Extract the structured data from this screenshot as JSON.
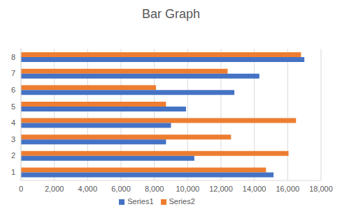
{
  "chart_data": {
    "type": "bar",
    "title": "Bar Graph",
    "orientation": "horizontal",
    "categories": [
      "1",
      "2",
      "3",
      "4",
      "5",
      "6",
      "7",
      "8"
    ],
    "series": [
      {
        "name": "Series1",
        "color": "#4472c4",
        "values": [
          15150,
          10400,
          8700,
          9000,
          9900,
          12800,
          14300,
          17000
        ]
      },
      {
        "name": "Series2",
        "color": "#ed7d31",
        "values": [
          14700,
          16050,
          12600,
          16500,
          8700,
          8100,
          12400,
          16800
        ]
      }
    ],
    "xlim": [
      0,
      18000
    ],
    "xticks": [
      0,
      {
        "value": 2000,
        "label": "2,000"
      },
      {
        "value": 4000,
        "label": "4,000"
      },
      {
        "value": 6000,
        "label": "6,000"
      },
      {
        "value": 8000,
        "label": "8,000"
      },
      {
        "value": 10000,
        "label": "10,000"
      },
      {
        "value": 12000,
        "label": "12,000"
      },
      {
        "value": 14000,
        "label": "14,000"
      },
      {
        "value": 16000,
        "label": "16,000"
      },
      {
        "value": 18000,
        "label": "18,000"
      }
    ],
    "grid": true,
    "legend": "bottom"
  }
}
